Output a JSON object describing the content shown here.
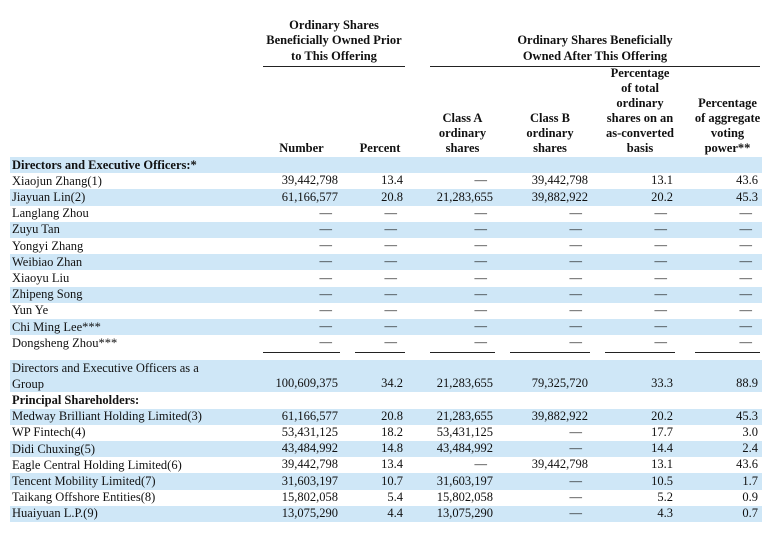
{
  "table": {
    "group_headers": [
      [
        "Ordinary Shares",
        "Beneficially Owned Prior",
        "to This Offering"
      ],
      [
        "Ordinary Shares Beneficially",
        "Owned After This Offering"
      ]
    ],
    "columns": [
      [
        "Number"
      ],
      [
        "Percent"
      ],
      [
        "Class A",
        "ordinary",
        "shares"
      ],
      [
        "Class B",
        "ordinary",
        "shares"
      ],
      [
        "Percentage",
        "of total",
        "ordinary",
        "shares on an",
        "as-converted",
        "basis"
      ],
      [
        "Percentage",
        "of aggregate",
        "voting",
        "power**"
      ]
    ],
    "sections": [
      {
        "title": "Directors and Executive Officers:*",
        "rows": [
          {
            "label": "Xiaojun Zhang(1)",
            "cells": [
              "39,442,798",
              "13.4",
              "—",
              "39,442,798",
              "13.1",
              "43.6"
            ]
          },
          {
            "label": "Jiayuan Lin(2)",
            "cells": [
              "61,166,577",
              "20.8",
              "21,283,655",
              "39,882,922",
              "20.2",
              "45.3"
            ]
          },
          {
            "label": "Langlang Zhou",
            "cells": [
              "—",
              "—",
              "—",
              "—",
              "—",
              "—"
            ]
          },
          {
            "label": "Zuyu Tan",
            "cells": [
              "—",
              "—",
              "—",
              "—",
              "—",
              "—"
            ]
          },
          {
            "label": "Yongyi Zhang",
            "cells": [
              "—",
              "—",
              "—",
              "—",
              "—",
              "—"
            ]
          },
          {
            "label": "Weibiao Zhan",
            "cells": [
              "—",
              "—",
              "—",
              "—",
              "—",
              "—"
            ]
          },
          {
            "label": "Xiaoyu Liu",
            "cells": [
              "—",
              "—",
              "—",
              "—",
              "—",
              "—"
            ]
          },
          {
            "label": "Zhipeng Song",
            "cells": [
              "—",
              "—",
              "—",
              "—",
              "—",
              "—"
            ]
          },
          {
            "label": "Yun Ye",
            "cells": [
              "—",
              "—",
              "—",
              "—",
              "—",
              "—"
            ]
          },
          {
            "label": "Chi Ming Lee***",
            "cells": [
              "—",
              "—",
              "—",
              "—",
              "—",
              "—"
            ]
          },
          {
            "label": "Dongsheng Zhou***",
            "cells": [
              "—",
              "—",
              "—",
              "—",
              "—",
              "—"
            ]
          }
        ]
      },
      {
        "total": {
          "label": [
            "Directors and Executive Officers as a",
            "Group"
          ],
          "cells": [
            "100,609,375",
            "34.2",
            "21,283,655",
            "79,325,720",
            "33.3",
            "88.9"
          ]
        }
      },
      {
        "title": "Principal Shareholders:",
        "rows": [
          {
            "label": "Medway Brilliant Holding Limited(3)",
            "cells": [
              "61,166,577",
              "20.8",
              "21,283,655",
              "39,882,922",
              "20.2",
              "45.3"
            ]
          },
          {
            "label": "WP Fintech(4)",
            "cells": [
              "53,431,125",
              "18.2",
              "53,431,125",
              "—",
              "17.7",
              "3.0"
            ]
          },
          {
            "label": "Didi Chuxing(5)",
            "cells": [
              "43,484,992",
              "14.8",
              "43,484,992",
              "—",
              "14.4",
              "2.4"
            ]
          },
          {
            "label": "Eagle Central Holding Limited(6)",
            "cells": [
              "39,442,798",
              "13.4",
              "—",
              "39,442,798",
              "13.1",
              "43.6"
            ]
          },
          {
            "label": "Tencent Mobility Limited(7)",
            "cells": [
              "31,603,197",
              "10.7",
              "31,603,197",
              "—",
              "10.5",
              "1.7"
            ]
          },
          {
            "label": "Taikang Offshore Entities(8)",
            "cells": [
              "15,802,058",
              "5.4",
              "15,802,058",
              "—",
              "5.2",
              "0.9"
            ]
          },
          {
            "label": "Huaiyuan L.P.(9)",
            "cells": [
              "13,075,290",
              "4.4",
              "13,075,290",
              "—",
              "4.3",
              "0.7"
            ]
          }
        ]
      }
    ]
  }
}
